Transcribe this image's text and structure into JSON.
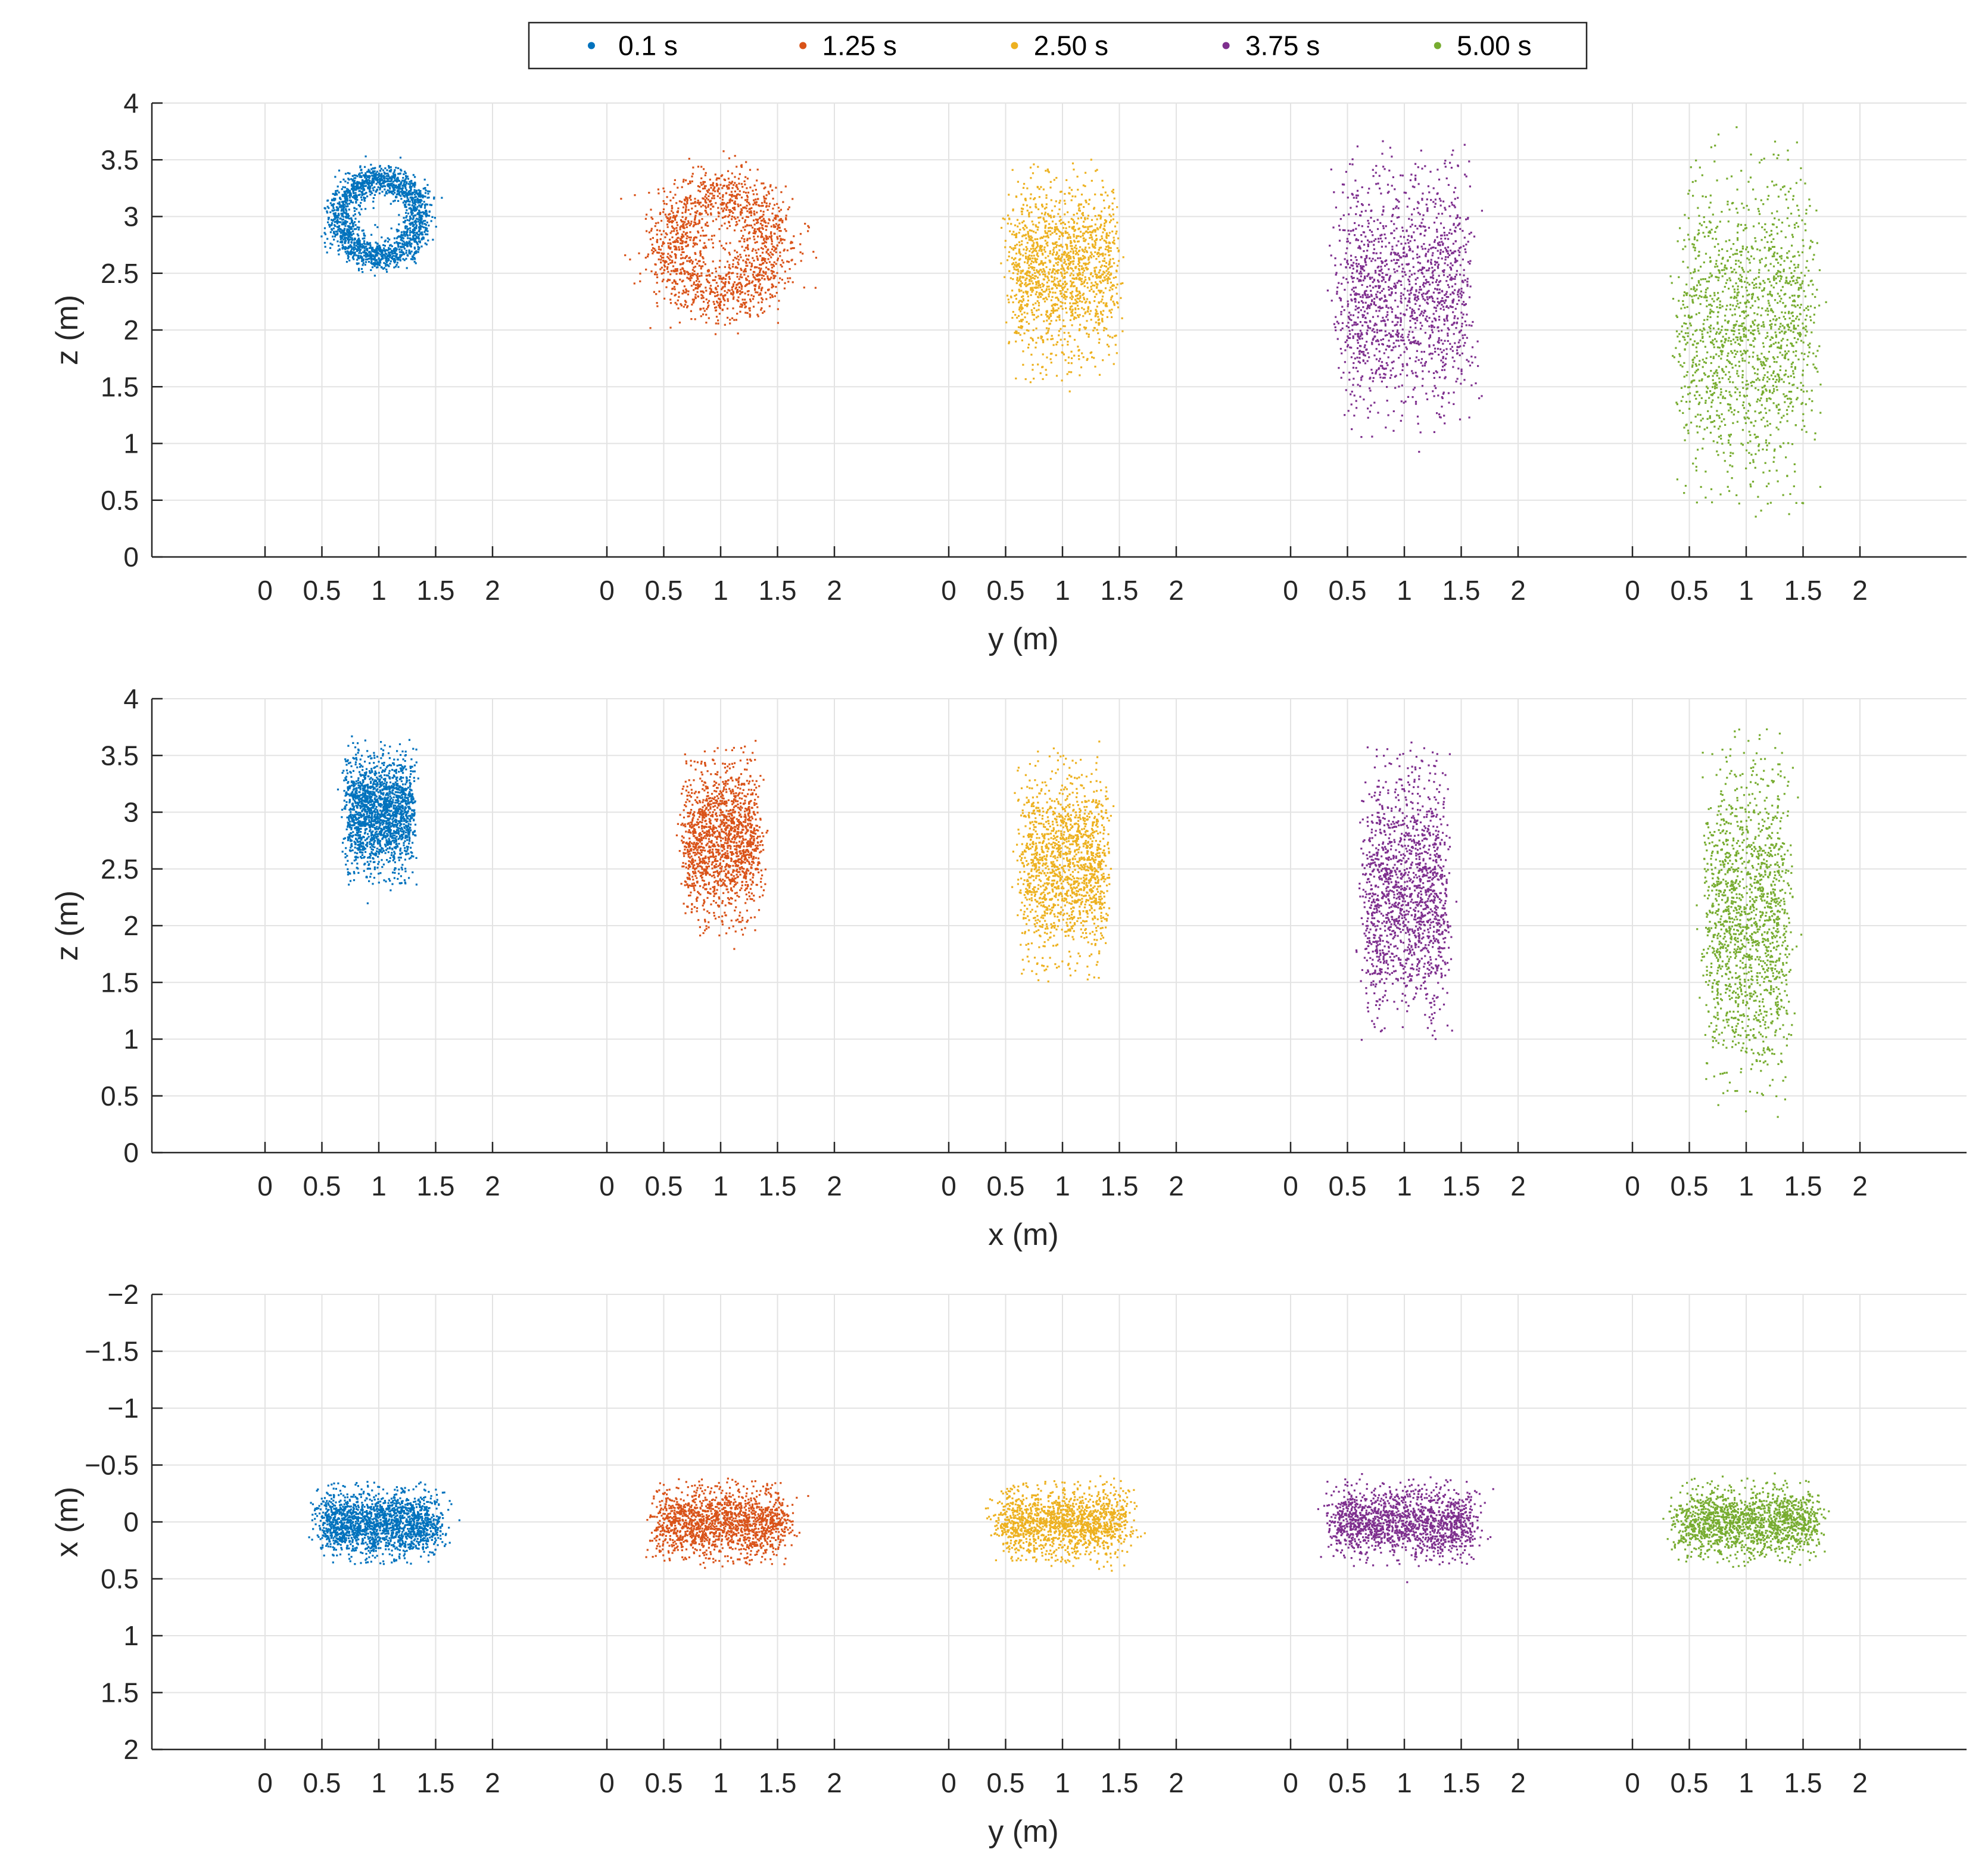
{
  "chart_data": {
    "type": "scatter",
    "colors": {
      "0.1 s": "#0072BD",
      "1.25 s": "#D95319",
      "2.50 s": "#EDB120",
      "3.75 s": "#7E2F8E",
      "5.00 s": "#77AC30"
    },
    "legend": {
      "entries": [
        "0.1 s",
        "1.25 s",
        "2.50 s",
        "3.75 s",
        "5.00 s"
      ],
      "placement": "top-center"
    },
    "group_tick_labels": [
      "0",
      "0.5",
      "1",
      "1.5",
      "2"
    ],
    "groups": 5,
    "panels": [
      {
        "id": "yz",
        "xlabel": "y (m)",
        "ylabel": "z (m)",
        "ylim": [
          0,
          4
        ],
        "y_reversed": false,
        "y_tick_values": [
          0,
          0.5,
          1,
          1.5,
          2,
          2.5,
          3,
          3.5,
          4
        ],
        "y_tick_labels": [
          "0",
          "0.5",
          "1",
          "1.5",
          "2",
          "2.5",
          "3",
          "3.5",
          "4"
        ],
        "grid": true,
        "series": [
          {
            "name": "0.1 s",
            "shape": "ring",
            "center": [
              1.0,
              3.0
            ],
            "radius": 0.35,
            "width": 0.13,
            "count": 1800
          },
          {
            "name": "1.25 s",
            "shape": "ring",
            "center": [
              1.0,
              2.75
            ],
            "radius": 0.45,
            "width": 0.28,
            "count": 1500
          },
          {
            "name": "2.50 s",
            "shape": "box",
            "center": [
              1.0,
              2.55
            ],
            "half_y": 0.45,
            "half_z": 0.75,
            "count": 1500
          },
          {
            "name": "3.75 s",
            "shape": "box",
            "center": [
              1.0,
              2.35
            ],
            "half_y": 0.55,
            "half_z": 1.0,
            "count": 1500
          },
          {
            "name": "5.00 s",
            "shape": "box",
            "center": [
              1.0,
              2.05
            ],
            "half_y": 0.55,
            "half_z": 1.3,
            "count": 1500
          }
        ]
      },
      {
        "id": "xz",
        "xlabel": "x (m)",
        "ylabel": "z (m)",
        "ylim": [
          0,
          4
        ],
        "y_reversed": false,
        "y_tick_values": [
          0,
          0.5,
          1,
          1.5,
          2,
          2.5,
          3,
          3.5,
          4
        ],
        "y_tick_labels": [
          "0",
          "0.5",
          "1",
          "1.5",
          "2",
          "2.5",
          "3",
          "3.5",
          "4"
        ],
        "grid": true,
        "series": [
          {
            "name": "0.1 s",
            "shape": "box",
            "center": [
              1.0,
              3.0
            ],
            "half_y": 0.28,
            "half_z": 0.5,
            "count": 1800
          },
          {
            "name": "1.25 s",
            "shape": "box",
            "center": [
              1.0,
              2.75
            ],
            "half_y": 0.32,
            "half_z": 0.65,
            "count": 1500
          },
          {
            "name": "2.50 s",
            "shape": "box",
            "center": [
              1.0,
              2.55
            ],
            "half_y": 0.36,
            "half_z": 0.8,
            "count": 1500
          },
          {
            "name": "3.75 s",
            "shape": "box",
            "center": [
              1.0,
              2.3
            ],
            "half_y": 0.35,
            "half_z": 1.0,
            "count": 1500
          },
          {
            "name": "5.00 s",
            "shape": "box",
            "center": [
              1.0,
              2.05
            ],
            "half_y": 0.35,
            "half_z": 1.3,
            "count": 1500
          }
        ]
      },
      {
        "id": "yx",
        "xlabel": "y (m)",
        "ylabel": "x (m)",
        "ylim": [
          -2,
          2
        ],
        "y_reversed": true,
        "y_tick_values": [
          -2,
          -1.5,
          -1,
          -0.5,
          0,
          0.5,
          1,
          1.5,
          2
        ],
        "y_tick_labels": [
          "−2",
          "−1.5",
          "−1",
          "−0.5",
          "0",
          "0.5",
          "1",
          "1.5",
          "2"
        ],
        "grid": true,
        "series": [
          {
            "name": "0.1 s",
            "shape": "box",
            "center": [
              1.0,
              0.0
            ],
            "half_y": 0.5,
            "half_z": 0.28,
            "count": 1800
          },
          {
            "name": "1.25 s",
            "shape": "box",
            "center": [
              1.0,
              0.0
            ],
            "half_y": 0.55,
            "half_z": 0.3,
            "count": 1500
          },
          {
            "name": "2.50 s",
            "shape": "box",
            "center": [
              1.0,
              0.0
            ],
            "half_y": 0.55,
            "half_z": 0.3,
            "count": 1500
          },
          {
            "name": "3.75 s",
            "shape": "box",
            "center": [
              1.0,
              0.0
            ],
            "half_y": 0.6,
            "half_z": 0.3,
            "count": 1500
          },
          {
            "name": "5.00 s",
            "shape": "box",
            "center": [
              1.0,
              0.0
            ],
            "half_y": 0.6,
            "half_z": 0.3,
            "count": 1500
          }
        ]
      }
    ]
  }
}
